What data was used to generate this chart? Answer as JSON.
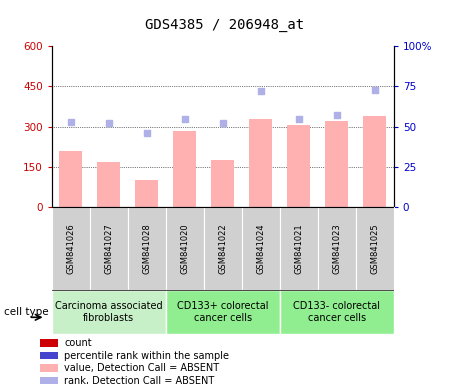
{
  "title": "GDS4385 / 206948_at",
  "samples": [
    "GSM841026",
    "GSM841027",
    "GSM841028",
    "GSM841020",
    "GSM841022",
    "GSM841024",
    "GSM841021",
    "GSM841023",
    "GSM841025"
  ],
  "bar_values": [
    210,
    170,
    100,
    285,
    175,
    330,
    305,
    320,
    340
  ],
  "dot_values": [
    53,
    52,
    46,
    55,
    52,
    72,
    55,
    57,
    73
  ],
  "groups": [
    {
      "label": "Carcinoma associated\nfibroblasts",
      "start": 0,
      "end": 3,
      "color": "#c8f0c8"
    },
    {
      "label": "CD133+ colorectal\ncancer cells",
      "start": 3,
      "end": 6,
      "color": "#90ee90"
    },
    {
      "label": "CD133- colorectal\ncancer cells",
      "start": 6,
      "end": 9,
      "color": "#90ee90"
    }
  ],
  "left_ylim": [
    0,
    600
  ],
  "right_ylim": [
    0,
    100
  ],
  "left_yticks": [
    0,
    150,
    300,
    450,
    600
  ],
  "right_yticks": [
    0,
    25,
    50,
    75,
    100
  ],
  "left_yticklabels": [
    "0",
    "150",
    "300",
    "450",
    "600"
  ],
  "right_yticklabels": [
    "0",
    "25",
    "50",
    "75",
    "100%"
  ],
  "bar_color": "#ffb0b0",
  "dot_color_light": "#b0b0e8",
  "legend_items": [
    {
      "color": "#cc0000",
      "label": "count"
    },
    {
      "color": "#4444cc",
      "label": "percentile rank within the sample"
    },
    {
      "color": "#ffb0b0",
      "label": "value, Detection Call = ABSENT"
    },
    {
      "color": "#b0b0e8",
      "label": "rank, Detection Call = ABSENT"
    }
  ],
  "cell_type_label": "cell type",
  "left_color": "#cc0000",
  "right_color": "#0000cc",
  "sample_box_color": "#d0d0d0",
  "title_fontsize": 10,
  "tick_fontsize": 7.5,
  "sample_fontsize": 6,
  "legend_fontsize": 7,
  "group_fontsize": 7
}
